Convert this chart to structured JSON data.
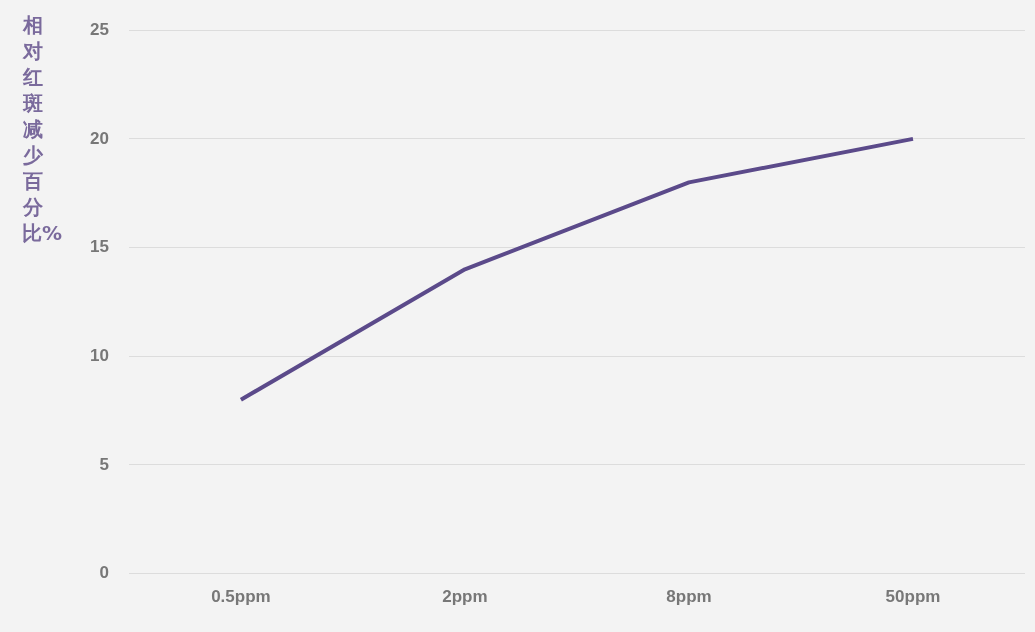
{
  "chart_data": {
    "type": "line",
    "ylabel": "相对红斑减少百分比%",
    "categories": [
      "0.5ppm",
      "2ppm",
      "8ppm",
      "50ppm"
    ],
    "series": [
      {
        "color": "#5b4a8a",
        "values": [
          8,
          14,
          18,
          20
        ]
      }
    ],
    "ylim": [
      0,
      25
    ],
    "yticks": [
      0,
      5,
      10,
      15,
      20,
      25
    ],
    "grid": "y",
    "legend": false,
    "marker": "none",
    "line_style": "solid"
  }
}
